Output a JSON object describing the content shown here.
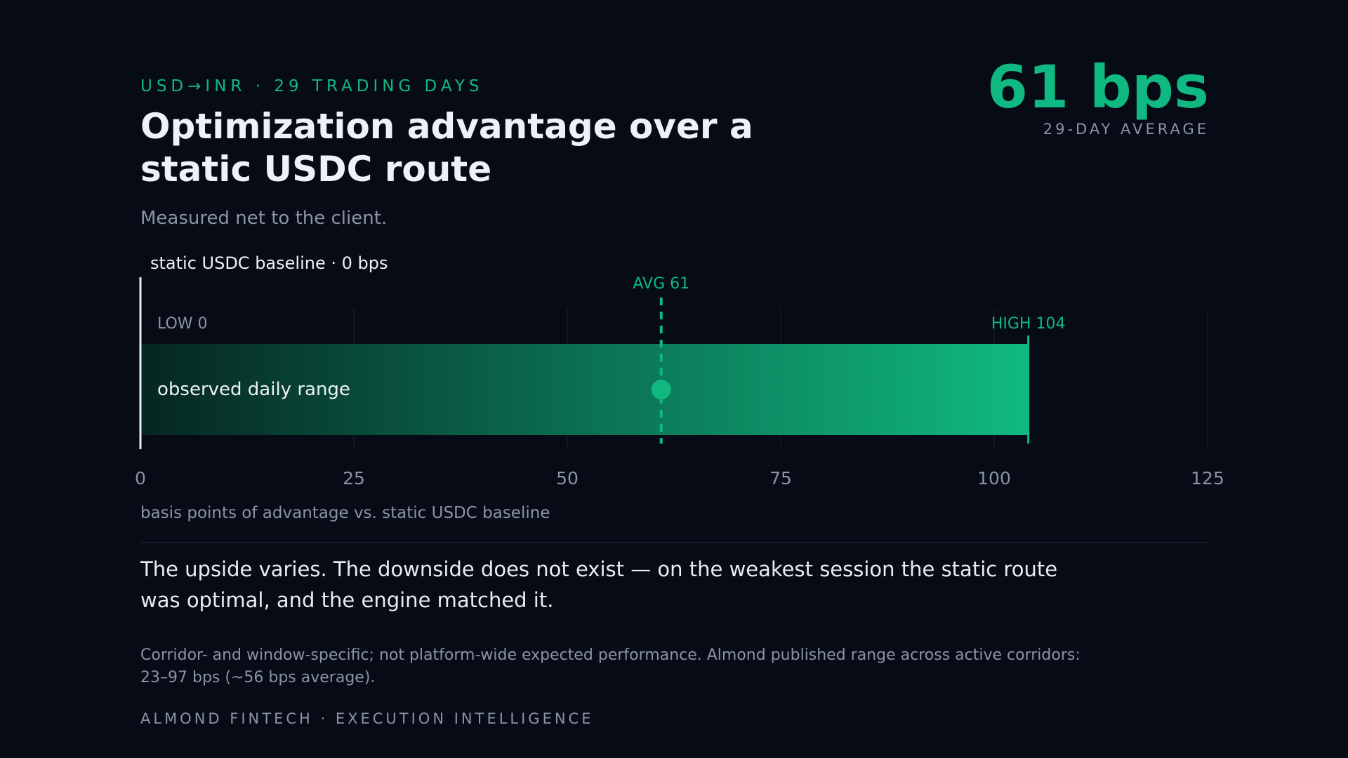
{
  "header": {
    "eyebrow": "USD→INR · 29 TRADING DAYS",
    "title": "Optimization advantage over a static USDC route",
    "subtitle": "Measured net to the client."
  },
  "kpi": {
    "value": "61 bps",
    "label": "29-DAY AVERAGE"
  },
  "chart_data": {
    "type": "bar",
    "categories": [
      "observed daily range"
    ],
    "range": {
      "low": 0,
      "high": 104
    },
    "average": 61,
    "xlim": [
      0,
      125
    ],
    "x_ticks": [
      0,
      25,
      50,
      75,
      100,
      125
    ],
    "xlabel": "basis points of advantage vs. static USDC baseline",
    "baseline_label": "static USDC baseline · 0 bps",
    "low_label": "LOW 0",
    "high_label": "HIGH 104",
    "avg_label": "AVG 61",
    "bar_label": "observed daily range",
    "grid": true,
    "colors": {
      "accent": "#10b981",
      "bar_start": "#062622",
      "baseline": "#e8ecf4"
    }
  },
  "takeaway": "The upside varies. The downside does not exist — on the weakest session the static route was optimal, and the engine matched it.",
  "footnote": "Corridor- and window-specific; not platform-wide expected performance. Almond published range across active corridors: 23–97 bps (~56 bps average).",
  "footer": "ALMOND FINTECH · EXECUTION INTELLIGENCE"
}
